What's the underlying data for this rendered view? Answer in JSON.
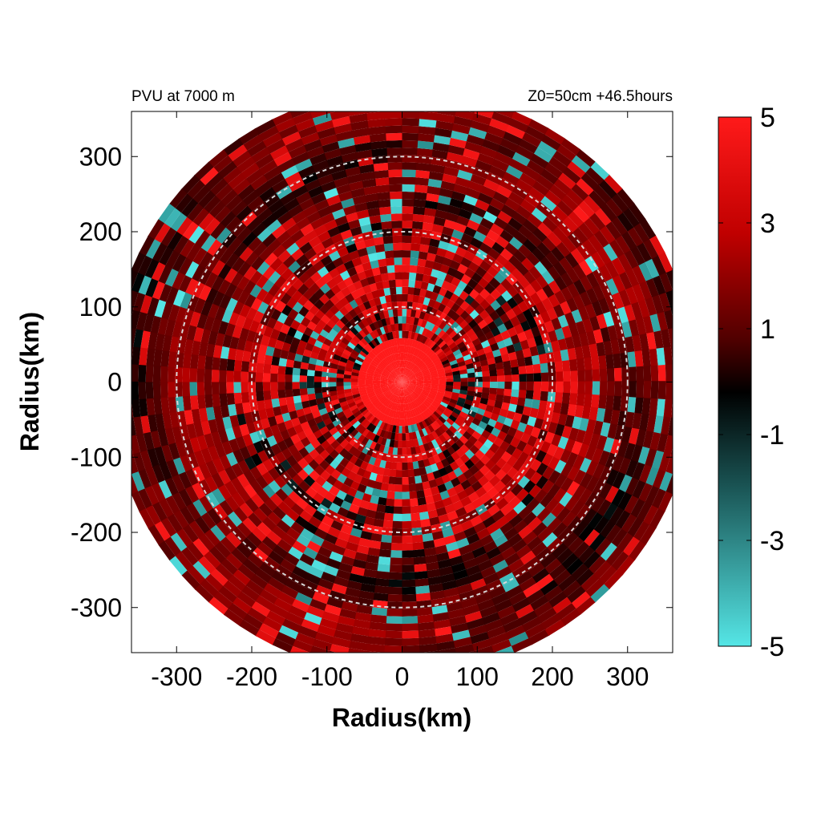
{
  "chart_data": {
    "type": "heatmap",
    "title_left": "PVU at  7000 m",
    "title_right": "Z0=50cm  +46.5hours",
    "xlabel": "Radius(km)",
    "ylabel": "Radius(km)",
    "xlim": [
      -360,
      360
    ],
    "ylim": [
      -360,
      360
    ],
    "x_ticks": [
      -300,
      -200,
      -100,
      0,
      100,
      200,
      300
    ],
    "y_ticks": [
      300,
      200,
      100,
      0,
      -100,
      -200,
      -300
    ],
    "x_tick_labels": [
      "-300",
      "-200",
      "-100",
      "0",
      "100",
      "200",
      "300"
    ],
    "y_tick_labels": [
      "300",
      "200",
      "100",
      "0",
      "-100",
      "-200",
      "-300"
    ],
    "range_rings_km": [
      100,
      200,
      300
    ],
    "data_radius_km": 390,
    "colorbar": {
      "min": -5,
      "max": 5,
      "ticks": [
        5,
        3,
        1,
        -1,
        -3,
        -5
      ],
      "tick_labels": [
        "5",
        "3",
        "1",
        "-1",
        "-3",
        "-5"
      ],
      "colors": {
        "max": "#ff1a1a",
        "mid_high": "#8b0000",
        "zero": "#000000",
        "mid_low": "#1e6b6b",
        "min": "#55e6e6"
      }
    },
    "features": {
      "core_value_pvu": 5,
      "core_radius_km": 55,
      "background_value_pvu": 1.2
    }
  }
}
